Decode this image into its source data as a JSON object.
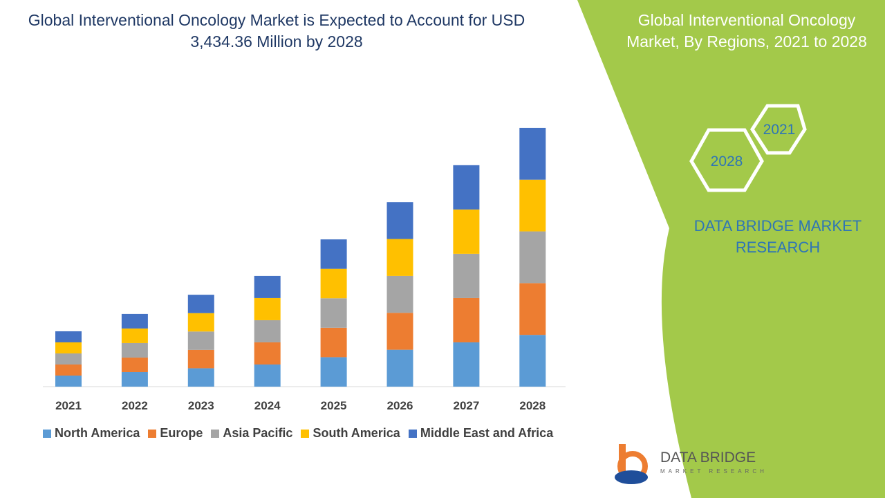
{
  "title": "Global Interventional Oncology Market is Expected to Account for USD 3,434.36 Million by 2028",
  "side_panel": {
    "title": "Global Interventional Oncology Market, By Regions, 2021 to 2028",
    "hex_labels": [
      "2021",
      "2028"
    ],
    "brand": "DATA BRIDGE MARKET RESEARCH",
    "accent": "#a3c94a"
  },
  "logo": {
    "name": "DATA BRIDGE",
    "tagline": "MARKET RESEARCH"
  },
  "chart_data": {
    "type": "bar",
    "stacked": true,
    "title": "",
    "xlabel": "",
    "ylabel": "",
    "grid": false,
    "legend": "bottom",
    "categories": [
      "2021",
      "2022",
      "2023",
      "2024",
      "2025",
      "2026",
      "2027",
      "2028"
    ],
    "series": [
      {
        "name": "North America",
        "color": "#5b9bd5",
        "values": [
          147,
          193,
          244,
          294,
          391,
          490,
          588,
          687
        ]
      },
      {
        "name": "Europe",
        "color": "#ed7d31",
        "values": [
          147,
          193,
          244,
          294,
          391,
          490,
          588,
          687
        ]
      },
      {
        "name": "Asia Pacific",
        "color": "#a5a5a5",
        "values": [
          147,
          193,
          244,
          294,
          391,
          490,
          588,
          687
        ]
      },
      {
        "name": "South America",
        "color": "#ffc000",
        "values": [
          147,
          193,
          244,
          294,
          391,
          490,
          588,
          687
        ]
      },
      {
        "name": "Middle East and Africa",
        "color": "#4472c4",
        "values": [
          147,
          193,
          244,
          294,
          391,
          490,
          588,
          687
        ]
      }
    ]
  }
}
